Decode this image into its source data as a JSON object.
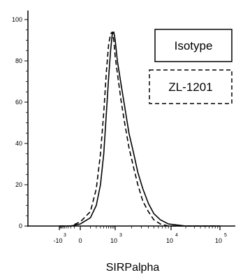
{
  "chart_data": {
    "type": "line",
    "title": "",
    "xlabel": "SIRPalpha",
    "ylabel": "",
    "ylim": [
      0,
      100
    ],
    "y_ticks": [
      0,
      20,
      40,
      60,
      80,
      100
    ],
    "y_tick_labels": [
      "0",
      "20",
      "40",
      "60",
      "80",
      "100"
    ],
    "x_axis": "biexponential",
    "x_ticks": [
      {
        "base": "-10",
        "exp": "3",
        "value": -1000
      },
      {
        "base": "0",
        "exp": "",
        "value": 0
      },
      {
        "base": "10",
        "exp": "3",
        "value": 1000
      },
      {
        "base": "10",
        "exp": "4",
        "value": 10000
      },
      {
        "base": "10",
        "exp": "5",
        "value": 100000
      }
    ],
    "grid": false,
    "legend": "top-right",
    "series": [
      {
        "name": "Isotype",
        "style": "solid",
        "color": "#000000",
        "x": [
          -1000,
          -500,
          -200,
          0,
          100,
          200,
          300,
          400,
          500,
          600,
          700,
          800,
          900,
          1000,
          1100,
          1300,
          1500,
          1800,
          2200,
          2600,
          3200,
          4000,
          5000,
          6500,
          9000,
          20000,
          100000
        ],
        "y": [
          0,
          0,
          0,
          1,
          4,
          10,
          20,
          35,
          55,
          72,
          85,
          93,
          94,
          90,
          80,
          68,
          58,
          45,
          35,
          26,
          18,
          11,
          6,
          3,
          1,
          0,
          0
        ]
      },
      {
        "name": "ZL-1201",
        "style": "dashed",
        "color": "#000000",
        "x": [
          -1000,
          -500,
          -200,
          0,
          100,
          200,
          300,
          400,
          500,
          600,
          700,
          800,
          900,
          1000,
          1100,
          1300,
          1500,
          1800,
          2200,
          2600,
          3200,
          4000,
          5000,
          6500,
          9000,
          20000,
          100000
        ],
        "y": [
          0,
          0,
          0,
          2,
          7,
          18,
          35,
          55,
          75,
          88,
          93,
          94,
          90,
          82,
          74,
          60,
          50,
          38,
          28,
          20,
          12,
          7,
          3,
          1,
          0,
          0,
          0
        ]
      }
    ]
  }
}
